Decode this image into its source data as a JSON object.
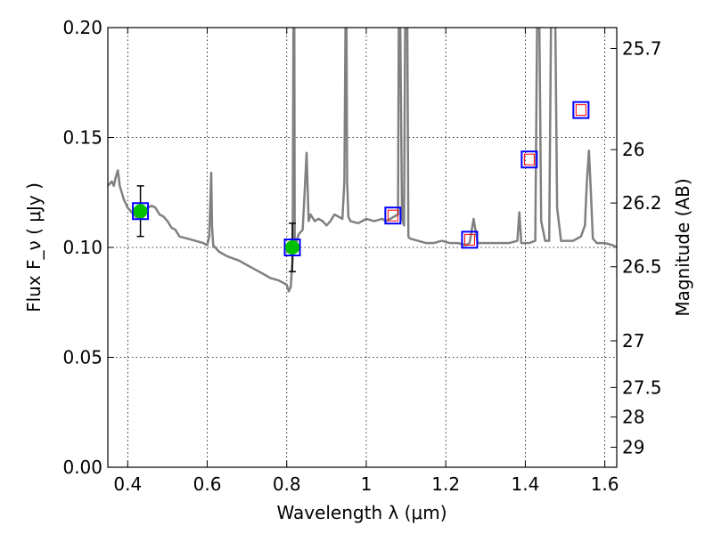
{
  "chart_data": {
    "type": "line",
    "xlabel": "Wavelength  λ (μm)",
    "ylabel": "Flux  F_ν  ( μJy )",
    "ylabel_right": "Magnitude (AB)",
    "xlim": [
      0.35,
      1.63
    ],
    "ylim": [
      0.0,
      0.2
    ],
    "grid": true,
    "x_ticks": [
      0.4,
      0.6,
      0.8,
      1.0,
      1.2,
      1.4,
      1.6
    ],
    "x_tick_labels": [
      "0.4",
      "0.6",
      "0.8",
      "1",
      "1.2",
      "1.4",
      "1.6"
    ],
    "y_ticks": [
      0.0,
      0.05,
      0.1,
      0.15,
      0.2
    ],
    "y_tick_labels": [
      "0.00",
      "0.05",
      "0.10",
      "0.15",
      "0.20"
    ],
    "right_ticks": [
      {
        "label": "25.7",
        "flux": 0.1905
      },
      {
        "label": "26",
        "flux": 0.1445
      },
      {
        "label": "26.2",
        "flux": 0.1202
      },
      {
        "label": "26.5",
        "flux": 0.0912
      },
      {
        "label": "27",
        "flux": 0.0575
      },
      {
        "label": "27.5",
        "flux": 0.0363
      },
      {
        "label": "28",
        "flux": 0.0229
      },
      {
        "label": "29",
        "flux": 0.0091
      }
    ],
    "series": [
      {
        "kind": "model",
        "color": "#808080",
        "x": [
          0.35,
          0.36,
          0.365,
          0.37,
          0.375,
          0.38,
          0.385,
          0.39,
          0.4,
          0.41,
          0.42,
          0.43,
          0.44,
          0.45,
          0.46,
          0.47,
          0.48,
          0.49,
          0.5,
          0.51,
          0.52,
          0.53,
          0.55,
          0.57,
          0.59,
          0.6,
          0.605,
          0.61,
          0.612,
          0.615,
          0.62,
          0.63,
          0.65,
          0.68,
          0.7,
          0.72,
          0.74,
          0.76,
          0.78,
          0.79,
          0.8,
          0.805,
          0.81,
          0.813,
          0.815,
          0.817,
          0.819,
          0.82,
          0.822,
          0.825,
          0.83,
          0.84,
          0.845,
          0.85,
          0.855,
          0.86,
          0.87,
          0.88,
          0.89,
          0.9,
          0.91,
          0.92,
          0.93,
          0.94,
          0.945,
          0.948,
          0.95,
          0.952,
          0.955,
          0.96,
          0.98,
          1.0,
          1.02,
          1.04,
          1.05,
          1.06,
          1.07,
          1.08,
          1.082,
          1.085,
          1.09,
          1.095,
          1.098,
          1.1,
          1.103,
          1.106,
          1.11,
          1.13,
          1.15,
          1.17,
          1.19,
          1.21,
          1.23,
          1.25,
          1.26,
          1.27,
          1.28,
          1.3,
          1.33,
          1.36,
          1.38,
          1.385,
          1.39,
          1.4,
          1.41,
          1.425,
          1.43,
          1.435,
          1.44,
          1.45,
          1.46,
          1.465,
          1.47,
          1.475,
          1.48,
          1.49,
          1.5,
          1.52,
          1.54,
          1.55,
          1.555,
          1.56,
          1.565,
          1.57,
          1.58,
          1.6,
          1.62,
          1.63
        ],
        "y": [
          0.128,
          0.13,
          0.128,
          0.132,
          0.135,
          0.128,
          0.125,
          0.122,
          0.118,
          0.116,
          0.114,
          0.113,
          0.114,
          0.118,
          0.119,
          0.118,
          0.115,
          0.114,
          0.112,
          0.109,
          0.108,
          0.105,
          0.104,
          0.103,
          0.102,
          0.101,
          0.105,
          0.134,
          0.11,
          0.101,
          0.1,
          0.098,
          0.096,
          0.094,
          0.092,
          0.09,
          0.088,
          0.086,
          0.085,
          0.084,
          0.083,
          0.08,
          0.082,
          0.09,
          0.095,
          0.21,
          0.21,
          0.1,
          0.098,
          0.103,
          0.106,
          0.108,
          0.125,
          0.143,
          0.112,
          0.115,
          0.112,
          0.113,
          0.112,
          0.11,
          0.112,
          0.115,
          0.114,
          0.113,
          0.13,
          0.21,
          0.21,
          0.13,
          0.114,
          0.112,
          0.111,
          0.113,
          0.112,
          0.113,
          0.112,
          0.113,
          0.114,
          0.115,
          0.21,
          0.21,
          0.113,
          0.11,
          0.21,
          0.21,
          0.21,
          0.105,
          0.104,
          0.103,
          0.102,
          0.102,
          0.103,
          0.102,
          0.102,
          0.101,
          0.102,
          0.113,
          0.102,
          0.102,
          0.102,
          0.102,
          0.103,
          0.116,
          0.102,
          0.102,
          0.102,
          0.103,
          0.21,
          0.21,
          0.112,
          0.103,
          0.103,
          0.21,
          0.21,
          0.21,
          0.118,
          0.103,
          0.103,
          0.103,
          0.105,
          0.11,
          0.13,
          0.144,
          0.125,
          0.104,
          0.102,
          0.102,
          0.101,
          0.1
        ]
      }
    ],
    "points_filled": [
      {
        "x": 0.432,
        "y": 0.1165,
        "err": 0.0115
      },
      {
        "x": 0.814,
        "y": 0.1,
        "err": 0.011
      }
    ],
    "squares_blue": [
      {
        "x": 0.432,
        "y": 0.1165
      },
      {
        "x": 0.814,
        "y": 0.1
      },
      {
        "x": 1.067,
        "y": 0.1145
      },
      {
        "x": 1.26,
        "y": 0.1035
      },
      {
        "x": 1.41,
        "y": 0.14
      },
      {
        "x": 1.54,
        "y": 0.1625
      }
    ],
    "squares_red": [
      {
        "x": 1.067,
        "y": 0.1145
      },
      {
        "x": 1.26,
        "y": 0.1035
      },
      {
        "x": 1.41,
        "y": 0.14
      },
      {
        "x": 1.54,
        "y": 0.1625
      }
    ],
    "colors": {
      "model": "#808080",
      "filled_point": "#00c000",
      "square_outer": "#0000ff",
      "square_inner": "#ff0000",
      "errorbar": "#000000",
      "grid": "#000000"
    }
  }
}
